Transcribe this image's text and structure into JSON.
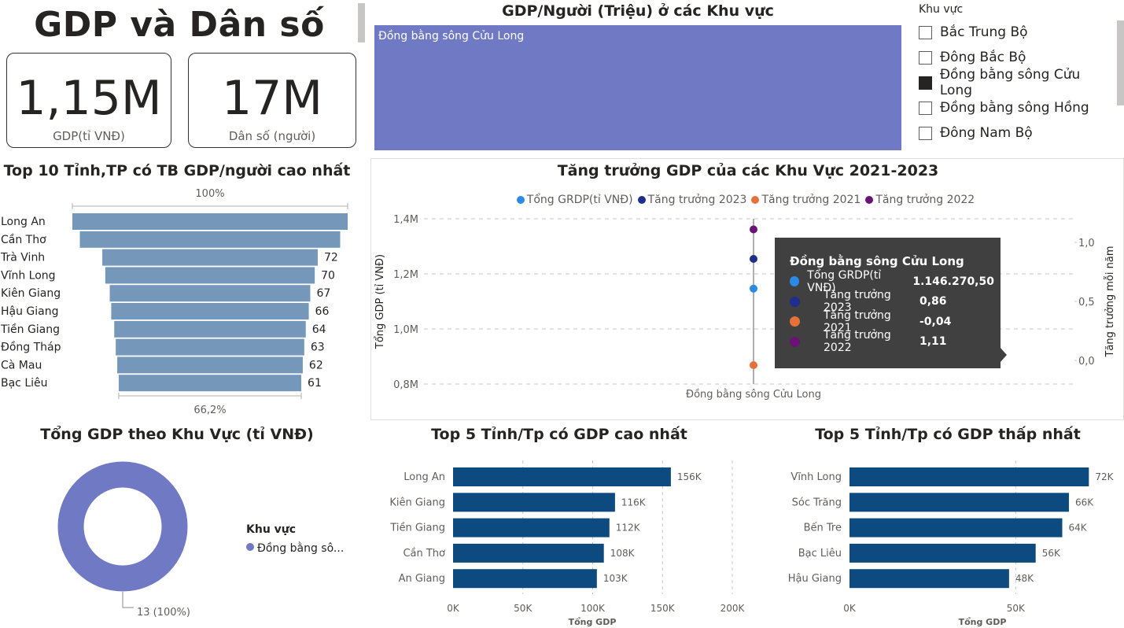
{
  "header": {
    "title": "GDP và Dân số"
  },
  "cards": [
    {
      "value": "1,15M",
      "label": "GDP(tỉ VNĐ)"
    },
    {
      "value": "17M",
      "label": "Dân số (người)"
    }
  ],
  "slicer": {
    "title": "Khu vực",
    "items": [
      {
        "label": "Bắc Trung Bộ",
        "checked": false
      },
      {
        "label": "Đông Bắc Bộ",
        "checked": false
      },
      {
        "label": "Đồng bằng sông Cửu Long",
        "checked": true
      },
      {
        "label": "Đồng bằng sông Hồng",
        "checked": false
      },
      {
        "label": "Đông Nam Bộ",
        "checked": false
      }
    ]
  },
  "tooltip": {
    "title": "Đồng bằng sông Cửu Long",
    "rows": [
      {
        "label": "Tổng GRDP(tỉ VNĐ)",
        "value": "1.146.270,50",
        "color": "#2b8ae6"
      },
      {
        "label": "Tăng trưởng 2023",
        "value": "0,86",
        "color": "#1f2d8c"
      },
      {
        "label": "Tăng trưởng 2021",
        "value": "-0,04",
        "color": "#e8703a"
      },
      {
        "label": "Tăng trưởng 2022",
        "value": "1,11",
        "color": "#6b1277"
      }
    ]
  },
  "chart_data": [
    {
      "type": "treemap",
      "title": "GDP/Người (Triệu) ở các Khu vực",
      "categories": [
        "Đồng bằng sông Cửu Long"
      ],
      "color": "#7079c4"
    },
    {
      "type": "funnel",
      "title": "Top 10 Tỉnh,TP có TB GDP/người cao nhất",
      "top_label": "100%",
      "bottom_label": "66,2%",
      "categories": [
        "Long An",
        "Cần Thơ",
        "Trà Vinh",
        "Vĩnh Long",
        "Kiên Giang",
        "Hậu Giang",
        "Tiền Giang",
        "Đồng Tháp",
        "Cà Mau",
        "Bạc Liêu"
      ],
      "values": [
        92,
        87,
        72,
        70,
        67,
        66,
        64,
        63,
        62,
        61
      ],
      "labels": [
        "",
        "",
        "72",
        "70",
        "67",
        "66",
        "64",
        "63",
        "62",
        "61"
      ],
      "color": "#7497ba"
    },
    {
      "type": "scatter",
      "title": "Tăng trưởng GDP của các Khu Vực 2021-2023",
      "xlabel": "",
      "ylabel": "Tổng GDP (tỉ VNĐ)",
      "y2label": "Tăng trưởng mỗi năm",
      "categories": [
        "Đồng bằng sông Cửu Long"
      ],
      "yticks": [
        "0,8M",
        "1,0M",
        "1,2M",
        "1,4M"
      ],
      "ylim": [
        800000,
        1400000
      ],
      "y2ticks": [
        "0,0",
        "0,5",
        "1,0"
      ],
      "y2lim": [
        -0.1,
        1.2
      ],
      "series": [
        {
          "name": "Tổng GRDP(tỉ VNĐ)",
          "axis": "left",
          "values": [
            1146270.5
          ],
          "color": "#2b8ae6"
        },
        {
          "name": "Tăng trưởng 2023",
          "axis": "right",
          "values": [
            0.86
          ],
          "color": "#1f2d8c"
        },
        {
          "name": "Tăng trưởng 2021",
          "axis": "right",
          "values": [
            -0.04
          ],
          "color": "#e8703a"
        },
        {
          "name": "Tăng trưởng 2022",
          "axis": "right",
          "values": [
            1.11
          ],
          "color": "#6b1277"
        }
      ]
    },
    {
      "type": "donut",
      "title": "Tổng GDP theo Khu Vực (tỉ VNĐ)",
      "legend_title": "Khu vực",
      "categories": [
        "Đồng bằng sô..."
      ],
      "values": [
        13
      ],
      "labels": [
        "13 (100%)"
      ],
      "color": "#7079c4"
    },
    {
      "type": "bar",
      "orientation": "horizontal",
      "title": "Top 5 Tỉnh/Tp có GDP cao nhất",
      "xlabel": "Tổng GDP",
      "categories": [
        "Long An",
        "Kiên Giang",
        "Tiền Giang",
        "Cần Thơ",
        "An Giang"
      ],
      "values": [
        156000,
        116000,
        112000,
        108000,
        103000
      ],
      "labels": [
        "156K",
        "116K",
        "112K",
        "108K",
        "103K"
      ],
      "xticks": [
        "0K",
        "50K",
        "100K",
        "150K",
        "200K"
      ],
      "xlim": [
        0,
        200000
      ],
      "color": "#0d4a7f"
    },
    {
      "type": "bar",
      "orientation": "horizontal",
      "title": "Top 5 Tỉnh/Tp có GDP thấp nhất",
      "xlabel": "Tổng GDP",
      "categories": [
        "Vĩnh Long",
        "Sóc Trăng",
        "Bến Tre",
        "Bạc Liêu",
        "Hậu Giang"
      ],
      "values": [
        72000,
        66000,
        64000,
        56000,
        48000
      ],
      "labels": [
        "72K",
        "66K",
        "64K",
        "56K",
        "48K"
      ],
      "xticks": [
        "0K",
        "50K"
      ],
      "xlim": [
        0,
        75000
      ],
      "color": "#0d4a7f"
    }
  ]
}
